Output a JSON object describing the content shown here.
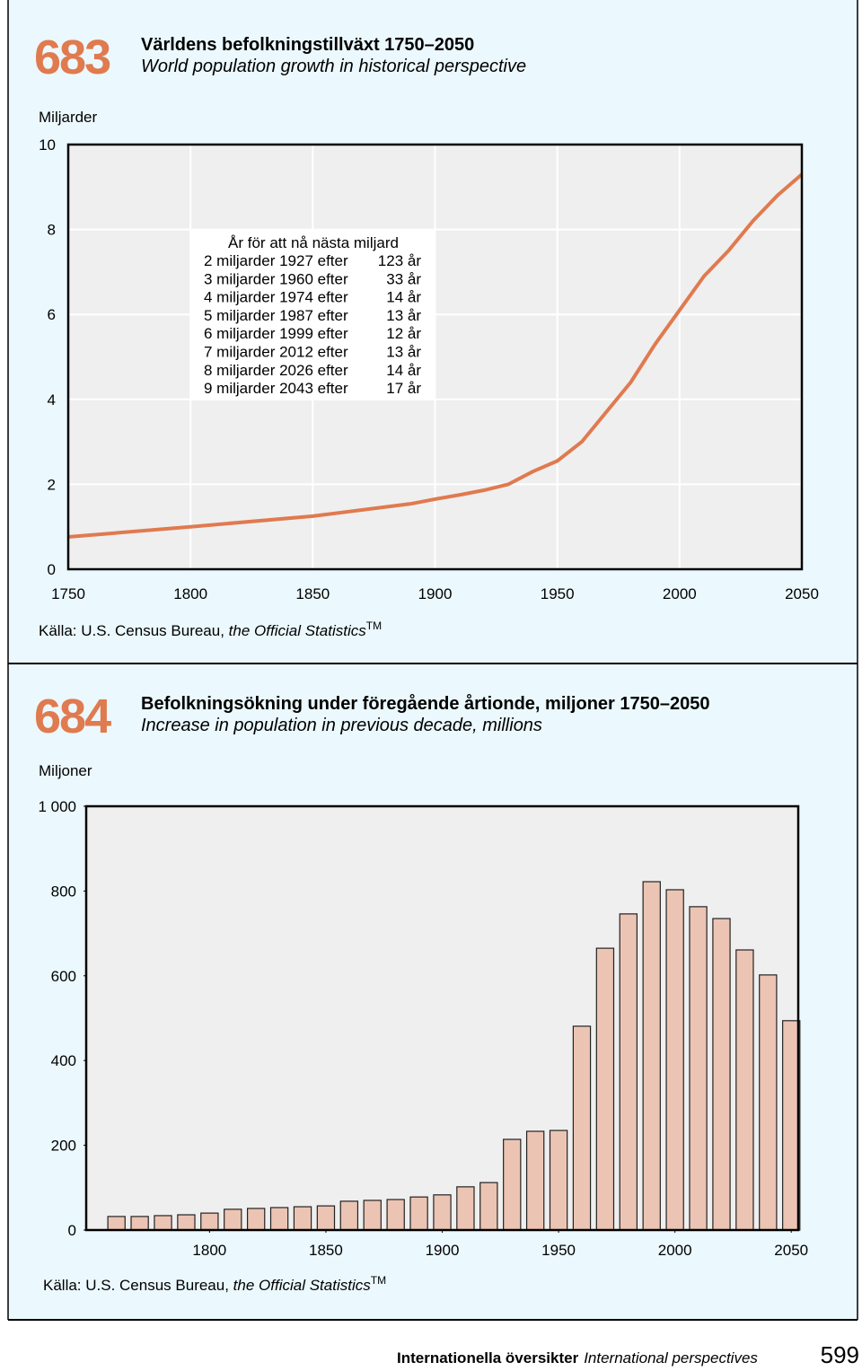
{
  "chart_data": [
    {
      "type": "line",
      "number": "683",
      "title": "Världens befolkningstillväxt 1750–2050",
      "subtitle": "World population growth in historical perspective",
      "y_label": "Miljarder",
      "x": [
        1750,
        1800,
        1850,
        1890,
        1900,
        1910,
        1920,
        1930,
        1940,
        1950,
        1960,
        1970,
        1980,
        1990,
        2000,
        2010,
        2020,
        2030,
        2040,
        2050
      ],
      "series": [
        {
          "name": "World population",
          "color": "#e07a4f",
          "values": [
            0.76,
            1.0,
            1.25,
            1.54,
            1.65,
            1.75,
            1.86,
            2.0,
            2.3,
            2.55,
            3.0,
            3.7,
            4.4,
            5.3,
            6.1,
            6.9,
            7.5,
            8.2,
            8.8,
            9.3
          ]
        }
      ],
      "xlim": [
        1750,
        2050
      ],
      "xticks": [
        1750,
        1800,
        1850,
        1900,
        1950,
        2000,
        2050
      ],
      "ylim": [
        0,
        10
      ],
      "yticks": [
        0,
        2,
        4,
        6,
        8,
        10
      ],
      "grid": true,
      "annotation": {
        "title": "År för att nå nästa miljard",
        "rows": [
          [
            "2 miljarder 1927 efter",
            "123 år"
          ],
          [
            "3 miljarder 1960 efter",
            "33 år"
          ],
          [
            "4 miljarder 1974 efter",
            "14 år"
          ],
          [
            "5 miljarder 1987 efter",
            "13 år"
          ],
          [
            "6 miljarder 1999 efter",
            "12 år"
          ],
          [
            "7 miljarder 2012 efter",
            "13 år"
          ],
          [
            "8 miljarder 2026 efter",
            "14 år"
          ],
          [
            "9 miljarder 2043 efter",
            "17 år"
          ]
        ]
      },
      "source": {
        "prefix": "Källa: U.S. Census Bureau, ",
        "italic": "the Official Statistics",
        "mark": "TM"
      }
    },
    {
      "type": "bar",
      "number": "684",
      "title": "Befolkningsökning under föregående årtionde, miljoner 1750–2050",
      "subtitle": "Increase in population in previous decade, millions",
      "y_label": "Miljoner",
      "x": [
        1760,
        1770,
        1780,
        1790,
        1800,
        1810,
        1820,
        1830,
        1840,
        1850,
        1860,
        1870,
        1880,
        1890,
        1900,
        1910,
        1920,
        1930,
        1940,
        1950,
        1960,
        1970,
        1980,
        1990,
        2000,
        2010,
        2020,
        2030,
        2040,
        2050
      ],
      "values": [
        32,
        32,
        34,
        36,
        40,
        49,
        51,
        53,
        55,
        57,
        68,
        70,
        72,
        78,
        83,
        102,
        112,
        214,
        233,
        235,
        481,
        665,
        746,
        822,
        803,
        763,
        735,
        661,
        602,
        494
      ],
      "color": "#ecc4b4",
      "xlim": [
        1747,
        2053
      ],
      "xticks": [
        1800,
        1850,
        1900,
        1950,
        2000,
        2050
      ],
      "ylim": [
        0,
        1000
      ],
      "yticks": [
        0,
        200,
        400,
        600,
        800,
        {
          "value": 1000,
          "label": "1 000"
        }
      ],
      "grid": false,
      "source": {
        "prefix": "Källa: U.S. Census Bureau, ",
        "italic": "the Official Statistics",
        "mark": "TM"
      }
    }
  ],
  "footer": {
    "section": "Internationella översikter",
    "section_en": "International perspectives",
    "page": "599"
  }
}
